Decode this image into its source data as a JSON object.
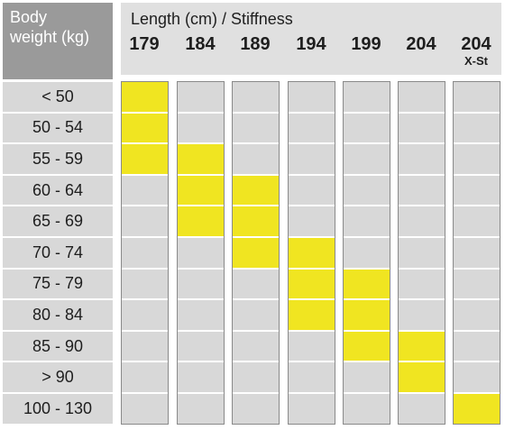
{
  "chart_data": {
    "type": "table",
    "title": "Length (cm) / Stiffness",
    "row_header": "Body weight (kg)",
    "row_header_lines": [
      "Body",
      "weight (kg)"
    ],
    "columns": [
      {
        "label": "179",
        "sub": ""
      },
      {
        "label": "184",
        "sub": ""
      },
      {
        "label": "189",
        "sub": ""
      },
      {
        "label": "194",
        "sub": ""
      },
      {
        "label": "199",
        "sub": ""
      },
      {
        "label": "204",
        "sub": ""
      },
      {
        "label": "204",
        "sub": "X-St"
      }
    ],
    "rows": [
      "< 50",
      "50 - 54",
      "55 - 59",
      "60 - 64",
      "65 - 69",
      "70 - 74",
      "75 - 79",
      "80 - 84",
      "85 - 90",
      "> 90",
      "100 - 130"
    ],
    "highlighted": [
      [
        0,
        0
      ],
      [
        1,
        0
      ],
      [
        2,
        0
      ],
      [
        2,
        1
      ],
      [
        3,
        1
      ],
      [
        4,
        1
      ],
      [
        3,
        2
      ],
      [
        4,
        2
      ],
      [
        5,
        2
      ],
      [
        5,
        3
      ],
      [
        6,
        3
      ],
      [
        7,
        3
      ],
      [
        6,
        4
      ],
      [
        7,
        4
      ],
      [
        8,
        4
      ],
      [
        8,
        5
      ],
      [
        9,
        5
      ],
      [
        10,
        6
      ]
    ],
    "colors": {
      "highlight": "#f0e521",
      "empty": "#d8d8d8",
      "label_bg": "#d8d8d8",
      "header_dark": "#9a9a9a",
      "header_light": "#e0e0e0"
    }
  }
}
